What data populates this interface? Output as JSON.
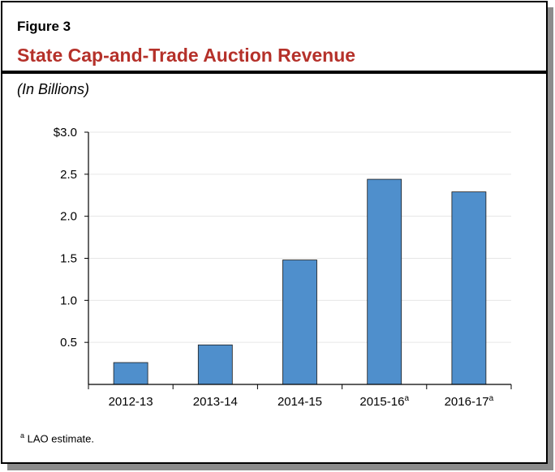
{
  "figure_label": "Figure 3",
  "chart_data": {
    "type": "bar",
    "title": "State Cap-and-Trade Auction Revenue",
    "subtitle": "(In Billions)",
    "categories": [
      "2012-13",
      "2013-14",
      "2014-15",
      "2015-16",
      "2016-17"
    ],
    "category_superscripts": [
      "",
      "",
      "",
      "a",
      "a"
    ],
    "values": [
      0.26,
      0.47,
      1.48,
      2.44,
      2.29
    ],
    "ylim": [
      0,
      3.0
    ],
    "yticks": [
      0.5,
      1.0,
      1.5,
      2.0,
      2.5,
      3.0
    ],
    "ytick_labels": [
      "0.5",
      "1.0",
      "1.5",
      "2.0",
      "2.5",
      "$3.0"
    ],
    "xlabel": "",
    "ylabel": "",
    "grid": true,
    "bar_color": "#4f8fcc",
    "title_color": "#b5312a"
  },
  "footnote": {
    "marker": "a",
    "text": "LAO estimate."
  }
}
